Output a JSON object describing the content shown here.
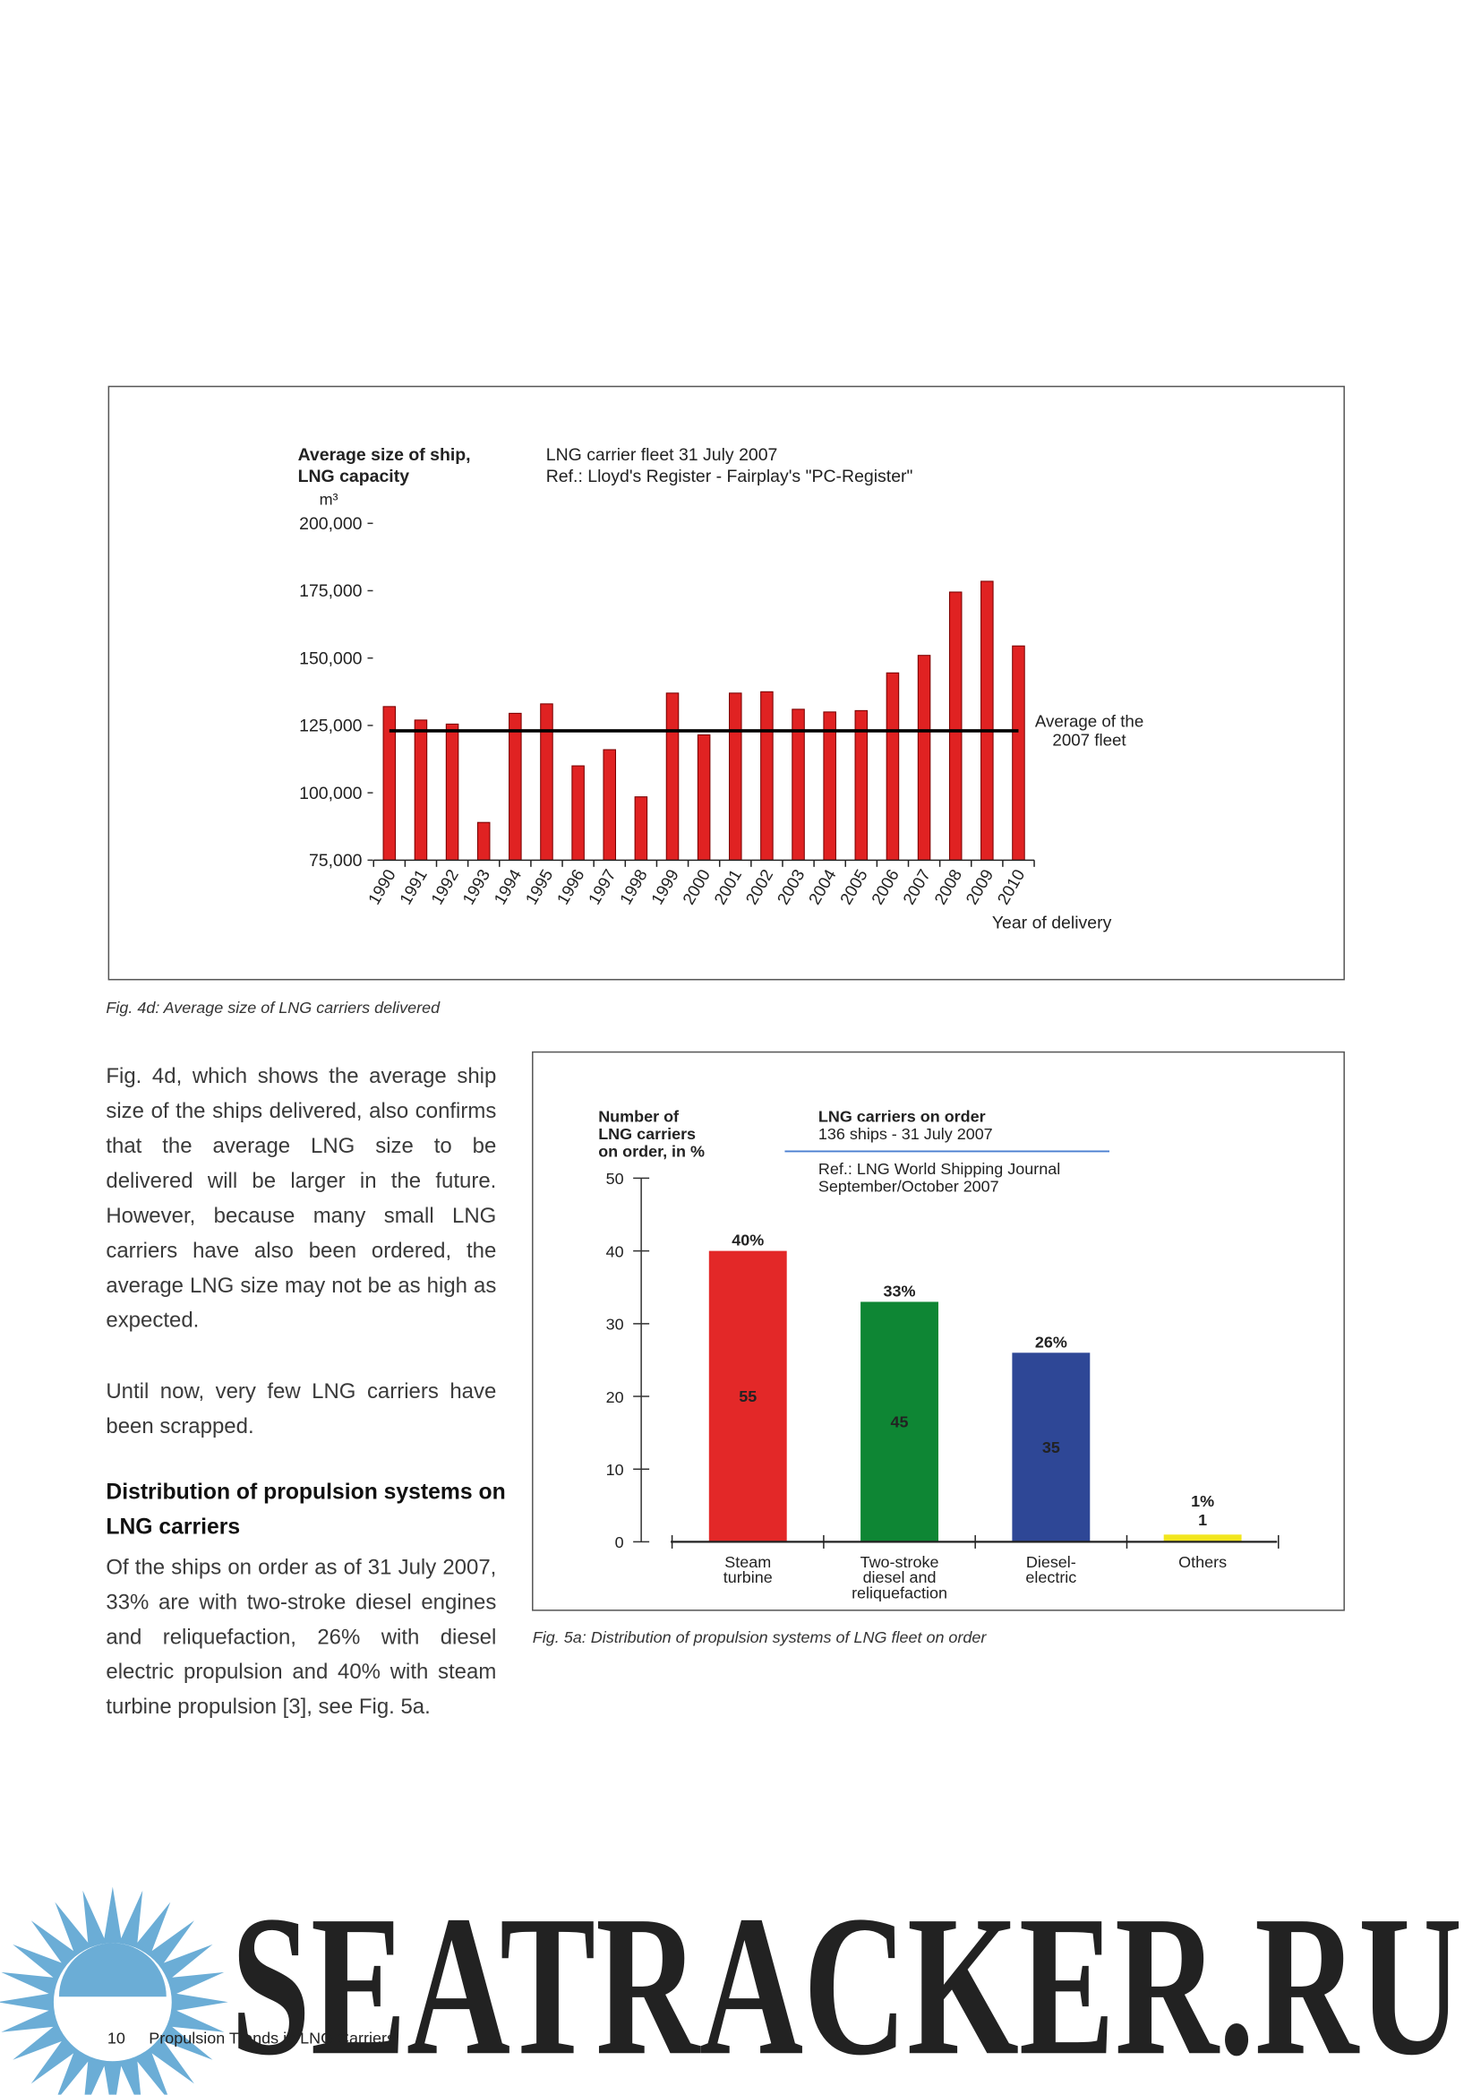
{
  "chart_data": [
    {
      "type": "bar",
      "y_label": "Average size of ship,\nLNG capacity",
      "y_unit": "m³",
      "subtitle": "LNG carrier fleet 31 July 2007",
      "source": "Ref.: Lloyd's Register - Fairplay's \"PC-Register\"",
      "x_label": "Year of delivery",
      "categories": [
        "1990",
        "1991",
        "1992",
        "1993",
        "1994",
        "1995",
        "1996",
        "1997",
        "1998",
        "1999",
        "2000",
        "2001",
        "2002",
        "2003",
        "2004",
        "2005",
        "2006",
        "2007",
        "2008",
        "2009",
        "2010"
      ],
      "values": [
        132000,
        127000,
        125500,
        89000,
        129500,
        133000,
        110000,
        116000,
        98500,
        137000,
        121500,
        137000,
        137500,
        131000,
        130000,
        130500,
        144500,
        151000,
        174500,
        178500,
        154500
      ],
      "color": "#e02222",
      "ylim": [
        75000,
        200000
      ],
      "yticks": [
        {
          "value": 75000,
          "label": "75,000"
        },
        {
          "value": 100000,
          "label": "100,000"
        },
        {
          "value": 125000,
          "label": "125,000"
        },
        {
          "value": 150000,
          "label": "150,000"
        },
        {
          "value": 175000,
          "label": "175,000"
        },
        {
          "value": 200000,
          "label": "200,000"
        }
      ],
      "average": {
        "value": 123000,
        "label": "Average of the\n2007 fleet"
      }
    },
    {
      "type": "bar",
      "y_label": "Number of\nLNG carriers\non order, in %",
      "title": "LNG carriers on order",
      "subtitle": "136 ships - 31 July 2007",
      "source": "Ref.: LNG World Shipping Journal\nSeptember/October 2007",
      "categories": [
        "Steam\nturbine",
        "Two-stroke\ndiesel and\nreliquefaction",
        "Diesel-\nelectric",
        "Others"
      ],
      "values": [
        40,
        33,
        26,
        1
      ],
      "value_labels": [
        "40%",
        "33%",
        "26%",
        "1%"
      ],
      "counts": [
        55,
        45,
        35,
        1
      ],
      "colors": [
        "#e32828",
        "#0e8634",
        "#2e4796",
        "#f2e61e"
      ],
      "ylim": [
        0,
        50
      ],
      "yticks": [
        0,
        10,
        20,
        30,
        40,
        50
      ]
    }
  ],
  "document": {
    "caption_4d": "Fig. 4d: Average size of LNG carriers delivered",
    "paragraphs": [
      "Fig. 4d, which shows the average ship size of the ships delivered, also con­firms that the average LNG size to be delivered will be larger in the future. However, because many small LNG carriers have also been ordered, the average LNG size may not be as high as expected.",
      "Until now, very few LNG carriers have been scrapped."
    ],
    "heading": "Distribution of propulsion systems on LNG carriers",
    "paragraph_after_heading": "Of the ships on order as of 31 July 2007, 33% are with two-stroke diesel engines and reliquefaction, 26% with diesel electric propulsion and 40% with steam turbine propulsion [3], see Fig. 5a.",
    "caption_5a": "Fig. 5a: Distribution of propulsion systems of LNG fleet on order",
    "page_number": "10",
    "footer_title": "Propulsion Trends in LNG Carriers",
    "watermark": "SEATRACKER.RU"
  }
}
